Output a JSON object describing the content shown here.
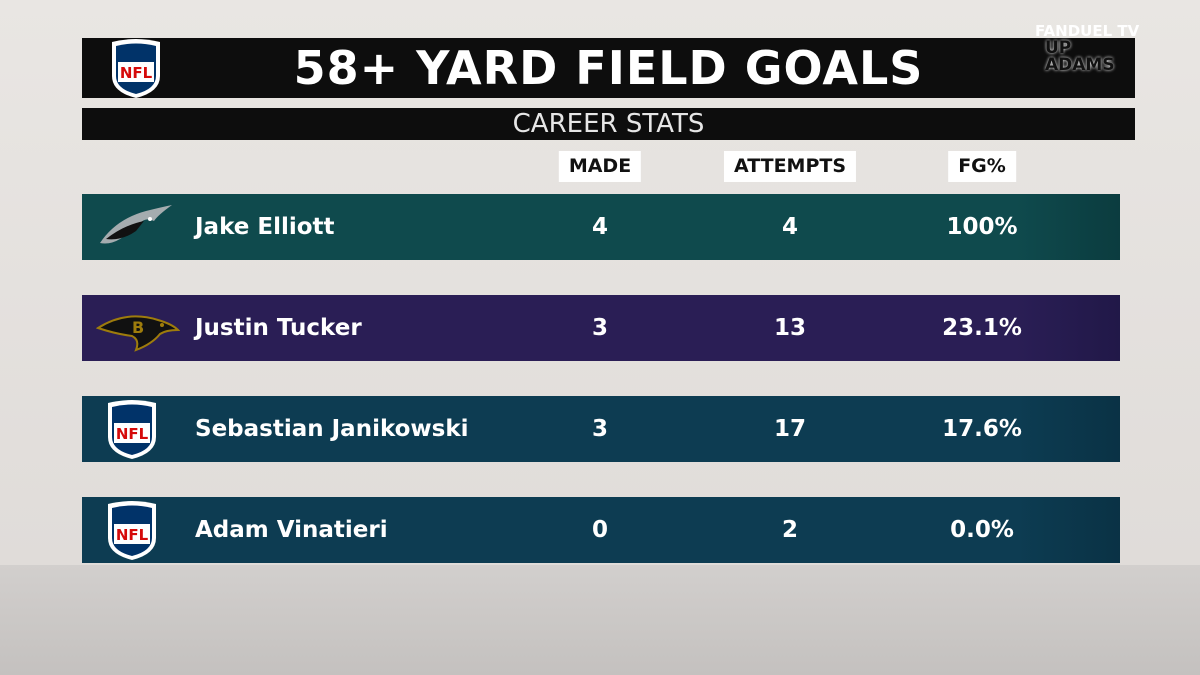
{
  "header": {
    "title": "58+ YARD FIELD GOALS",
    "subtitle": "CAREER STATS"
  },
  "brand": {
    "network": "FANDUEL TV",
    "show": [
      "UP",
      "ADAMS"
    ]
  },
  "logos": {
    "nfl": "NFL"
  },
  "table": {
    "columns": [
      "MADE",
      "ATTEMPTS",
      "FG%"
    ],
    "rows": [
      [
        "Jake Elliott",
        "4",
        "4",
        "100%"
      ],
      [
        "Justin Tucker",
        "3",
        "13",
        "23.1%"
      ],
      [
        "Sebastian Janikowski",
        "3",
        "17",
        "17.6%"
      ],
      [
        "Adam Vinatieri",
        "0",
        "2",
        "0.0%"
      ]
    ]
  }
}
